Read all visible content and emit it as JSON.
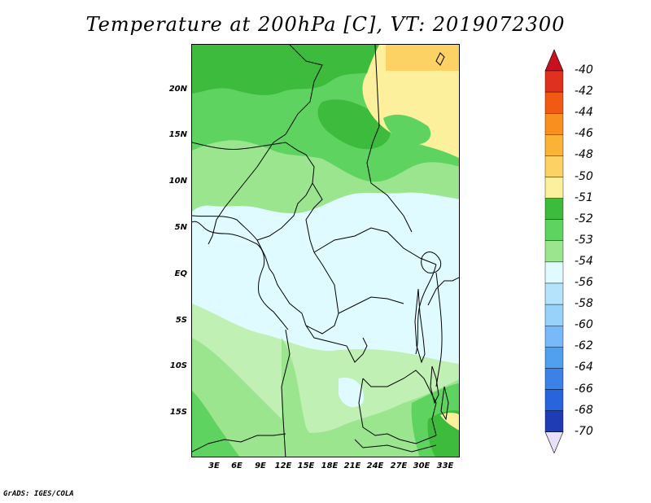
{
  "title": "Temperature at 200hPa [C], VT: 2019072300",
  "credit": "GrADS: IGES/COLA",
  "map": {
    "lat_labels": [
      "20N",
      "15N",
      "10N",
      "5N",
      "EQ",
      "5S",
      "10S",
      "15S"
    ],
    "lon_labels": [
      "3E",
      "6E",
      "9E",
      "12E",
      "15E",
      "18E",
      "21E",
      "24E",
      "27E",
      "30E",
      "33E"
    ]
  },
  "legend": {
    "labels": [
      "-40",
      "-42",
      "-44",
      "-46",
      "-48",
      "-50",
      "-51",
      "-52",
      "-53",
      "-54",
      "-56",
      "-58",
      "-60",
      "-62",
      "-64",
      "-66",
      "-68",
      "-70"
    ],
    "colors": [
      "#e0301e",
      "#f25a14",
      "#f98f1d",
      "#fbb335",
      "#fdd264",
      "#fdf09c",
      "#3cbb3c",
      "#5fd35f",
      "#9be58f",
      "#dffbff",
      "#b4e4fb",
      "#96d2fa",
      "#78b9fa",
      "#50a0f0",
      "#3c82e6",
      "#2864dc",
      "#1e3cb4",
      "#0f1e82"
    ],
    "top_arrow_color": "#c8101e",
    "bottom_arrow_color": "#e8e0f8"
  },
  "palette": {
    "frame_bg": "#dffbff",
    "green_dark": "#3cbb3c",
    "green_mid": "#5fd35f",
    "green_light": "#9be58f",
    "green_pale": "#c0f0b4",
    "yellow": "#fdf09c",
    "tan": "#fdd264"
  }
}
